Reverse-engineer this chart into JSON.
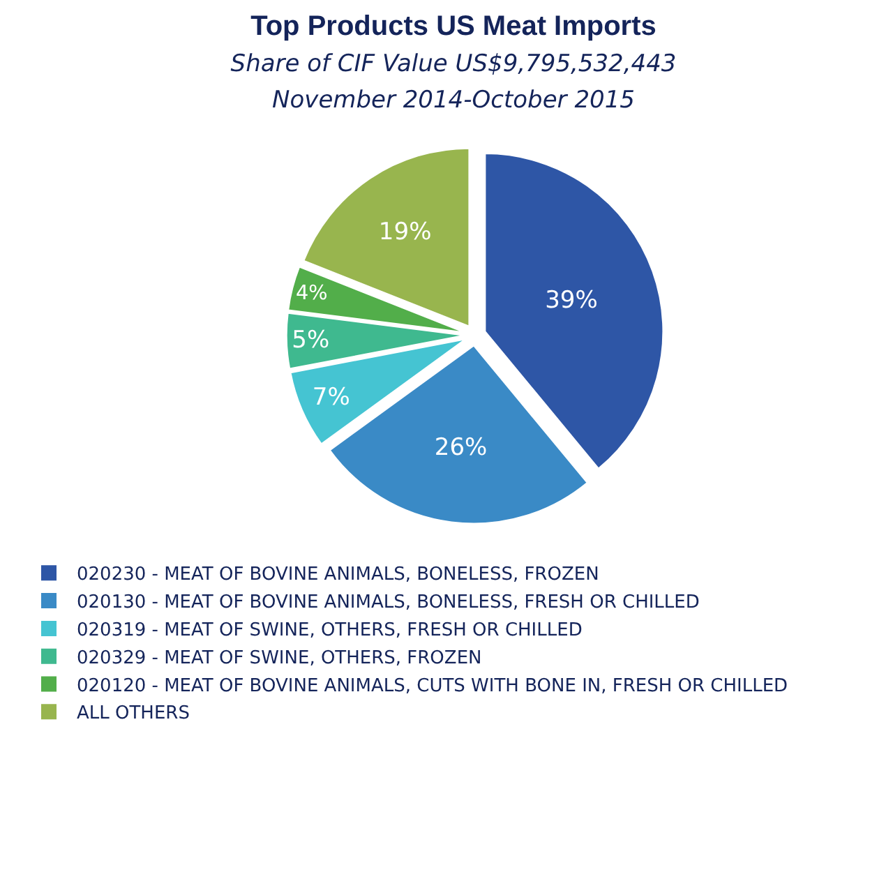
{
  "chart_data": {
    "type": "pie",
    "title": "Top Products US Meat Imports",
    "subtitle": "Share of CIF Value US$9,795,532,443\nNovember 2014-October 2015",
    "categories": [
      "020230 - MEAT OF BOVINE ANIMALS, BONELESS, FROZEN",
      "020130 - MEAT OF BOVINE ANIMALS, BONELESS, FRESH OR CHILLED",
      "020319 - MEAT OF SWINE, OTHERS, FRESH OR CHILLED",
      "020329 - MEAT OF SWINE, OTHERS, FROZEN",
      "020120 - MEAT OF BOVINE ANIMALS, CUTS WITH BONE IN, FRESH OR CHILLED",
      "ALL OTHERS"
    ],
    "values": [
      39,
      26,
      7,
      5,
      4,
      19
    ],
    "value_labels": [
      "39%",
      "26%",
      "7%",
      "5%",
      "4%",
      "19%"
    ],
    "colors": [
      "#2e56a6",
      "#3a8ac6",
      "#45c4d2",
      "#3fb98f",
      "#52ae4a",
      "#98b54e"
    ],
    "legend": "bottom"
  }
}
